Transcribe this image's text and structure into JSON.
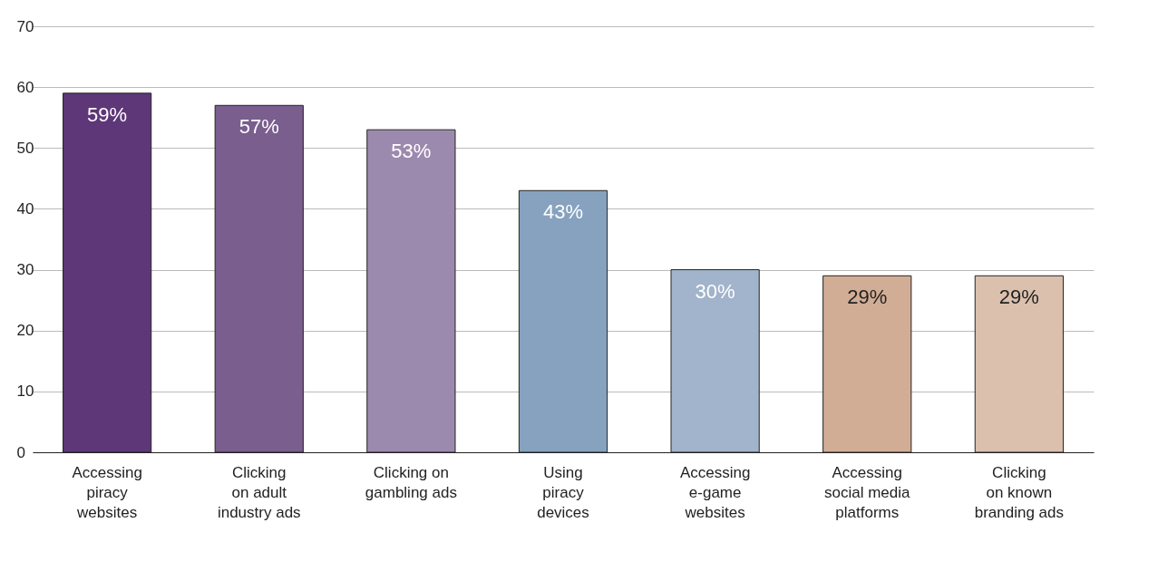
{
  "chart_data": {
    "type": "bar",
    "categories": [
      "Accessing\npiracy\nwebsites",
      "Clicking\non adult\nindustry ads",
      "Clicking on\ngambling ads",
      "Using\npiracy\ndevices",
      "Accessing\ne-game\nwebsites",
      "Accessing\nsocial media\nplatforms",
      "Clicking\non known\nbranding ads"
    ],
    "values": [
      59,
      57,
      53,
      43,
      30,
      29,
      29
    ],
    "colors": [
      "#5e3778",
      "#7a5e8e",
      "#9c8aae",
      "#86a2bf",
      "#a2b4cb",
      "#d2ad95",
      "#dbc0ae"
    ],
    "value_labels": [
      "59%",
      "57%",
      "53%",
      "43%",
      "30%",
      "29%",
      "29%"
    ],
    "ylim": [
      0,
      70
    ],
    "yticks": [
      0,
      10,
      20,
      30,
      40,
      50,
      60,
      70
    ],
    "grid": "y"
  }
}
